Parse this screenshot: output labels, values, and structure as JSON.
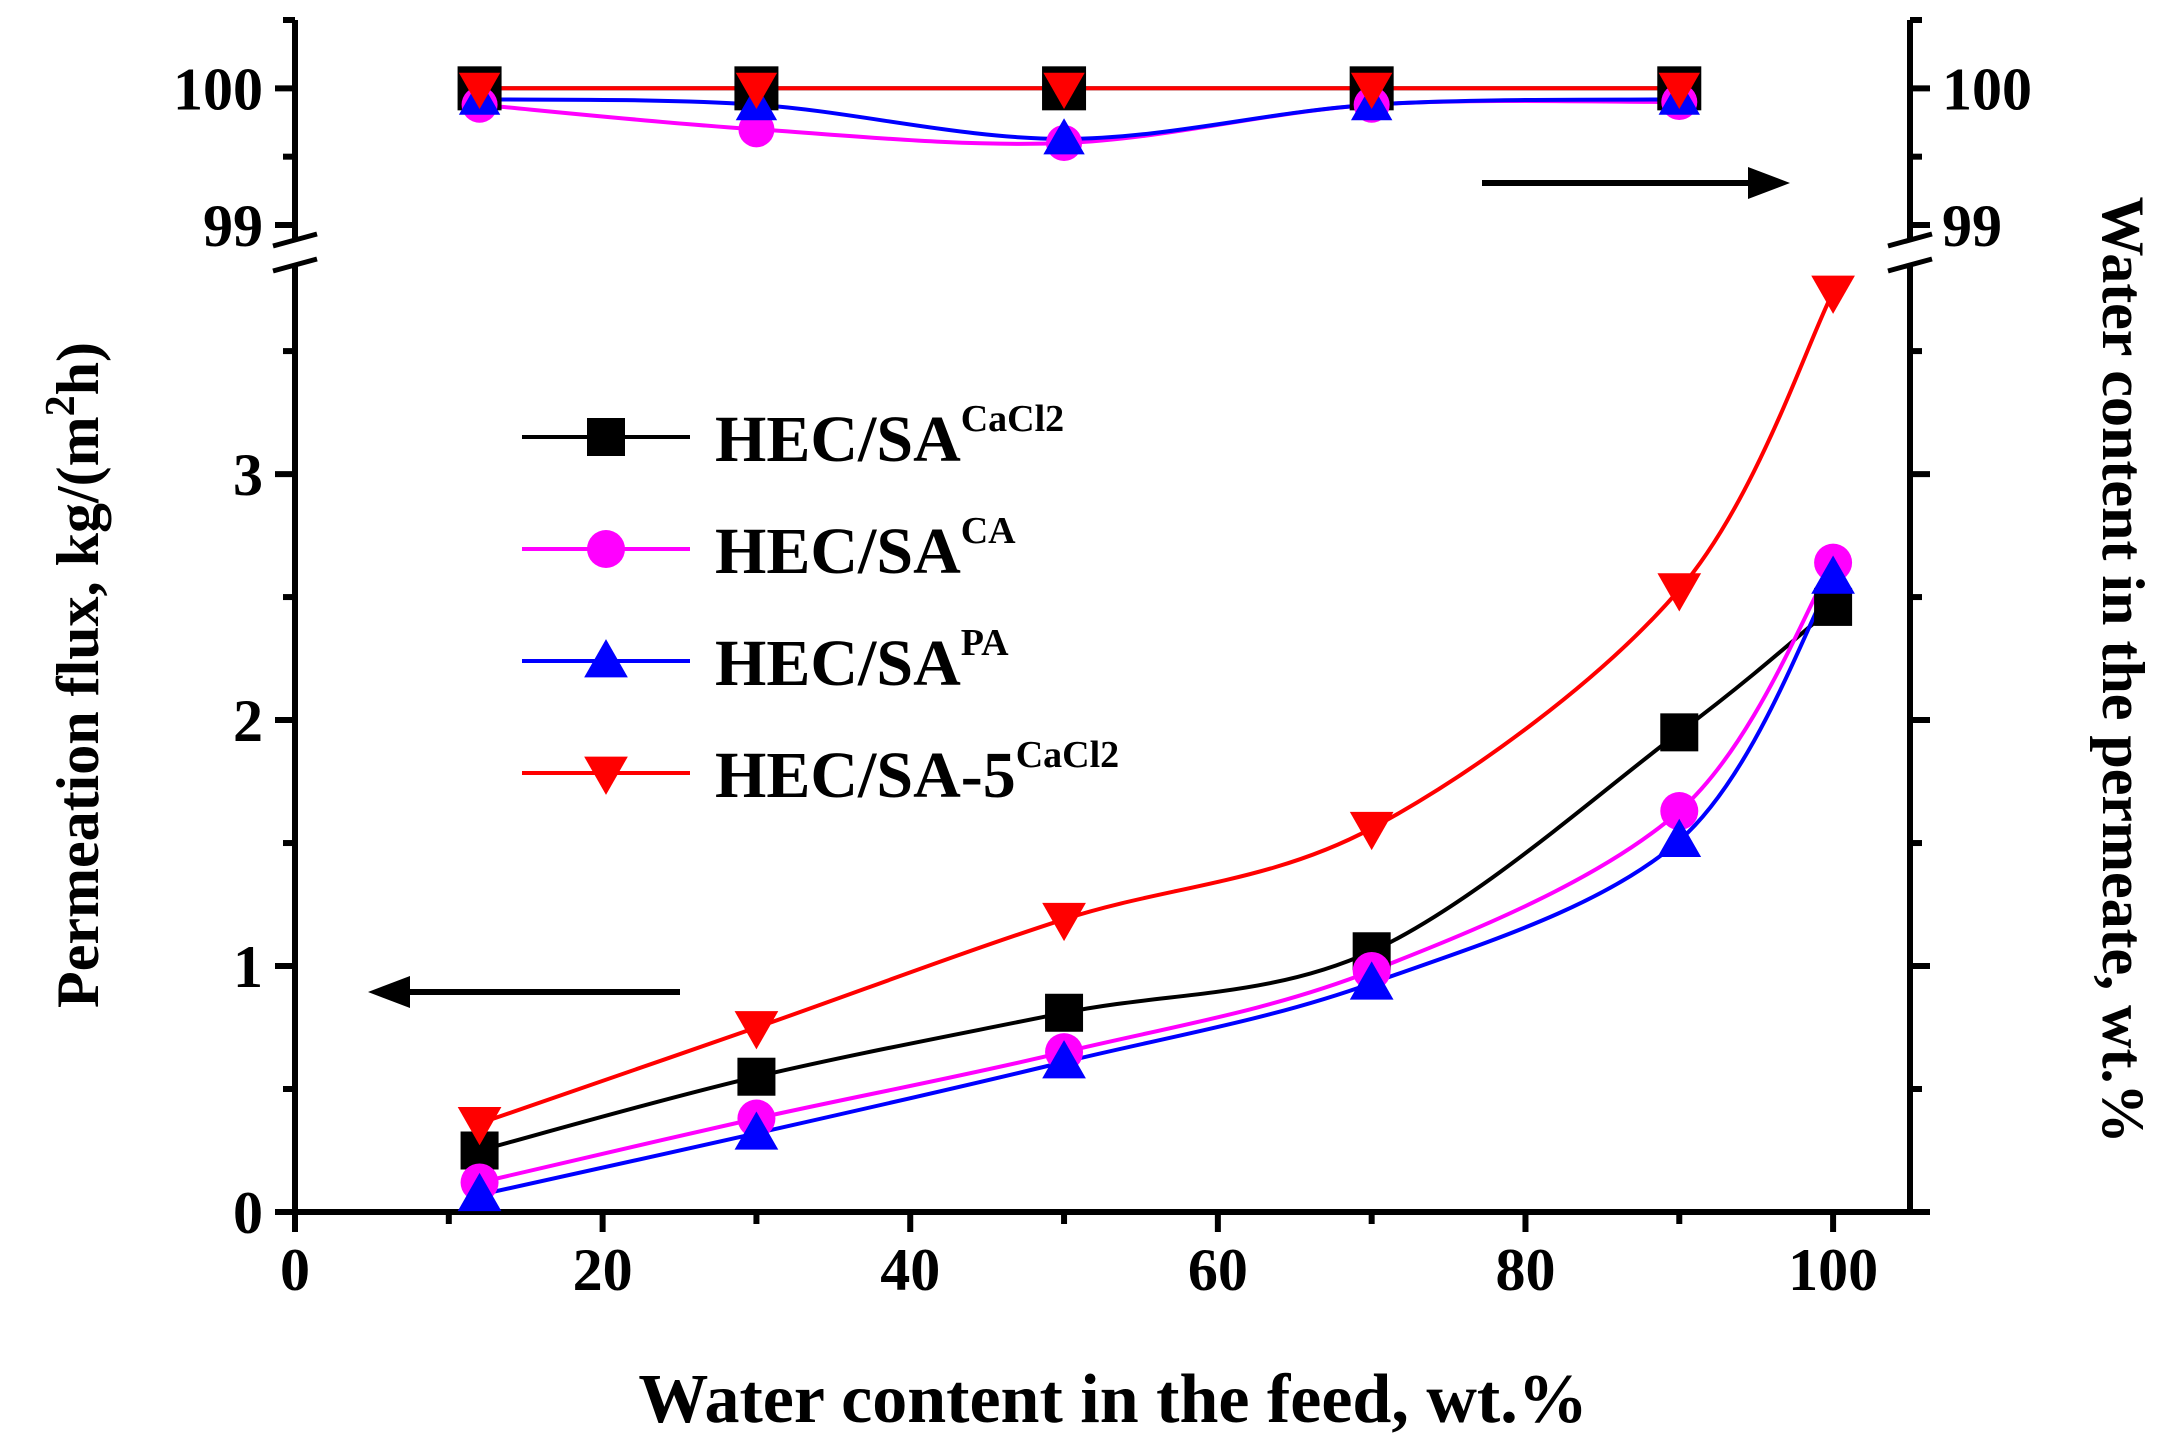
{
  "chart_data": {
    "type": "line",
    "xlabel": "Water content in the feed, wt.%",
    "ylabel_left": "Permeation flux, kg/(m",
    "ylabel_left_sup": "2",
    "ylabel_left_tail": "h)",
    "ylabel_right": "Water content in the permeate, wt.%",
    "x_ticks": [
      "0",
      "20",
      "40",
      "60",
      "80",
      "100"
    ],
    "x_range": [
      0,
      105
    ],
    "flux_ticks": [
      "0",
      "1",
      "2",
      "3"
    ],
    "flux_range": [
      0,
      3.85
    ],
    "purity_ticks": [
      "99",
      "100"
    ],
    "purity_range": [
      99,
      100.5
    ],
    "axis_break": true,
    "legend_position": "upper-left",
    "x": [
      12,
      30,
      50,
      70,
      90,
      100
    ],
    "series": [
      {
        "name": "HEC/SA",
        "name_sup": "CaCl2",
        "color": "#000000",
        "marker": "square",
        "flux": [
          0.25,
          0.55,
          0.81,
          1.06,
          1.95,
          2.46
        ],
        "purity": [
          100.0,
          100.0,
          100.0,
          100.0,
          100.0
        ]
      },
      {
        "name": "HEC/SA",
        "name_sup": "CA",
        "color": "#ff00ff",
        "marker": "circle",
        "flux": [
          0.12,
          0.38,
          0.65,
          0.98,
          1.63,
          2.64
        ],
        "purity": [
          99.88,
          99.7,
          99.6,
          99.88,
          99.9
        ]
      },
      {
        "name": "HEC/SA",
        "name_sup": "PA",
        "color": "#0000ff",
        "marker": "triangle-up",
        "flux": [
          0.07,
          0.32,
          0.61,
          0.93,
          1.51,
          2.58
        ],
        "purity": [
          99.92,
          99.88,
          99.63,
          99.88,
          99.92
        ]
      },
      {
        "name": "HEC/SA-5",
        "name_sup": "CaCl2",
        "color": "#ff0000",
        "marker": "triangle-down",
        "flux": [
          0.36,
          0.75,
          1.19,
          1.56,
          2.53,
          3.74
        ],
        "purity": [
          100.0,
          100.0,
          100.0,
          100.0,
          100.0
        ]
      }
    ]
  }
}
